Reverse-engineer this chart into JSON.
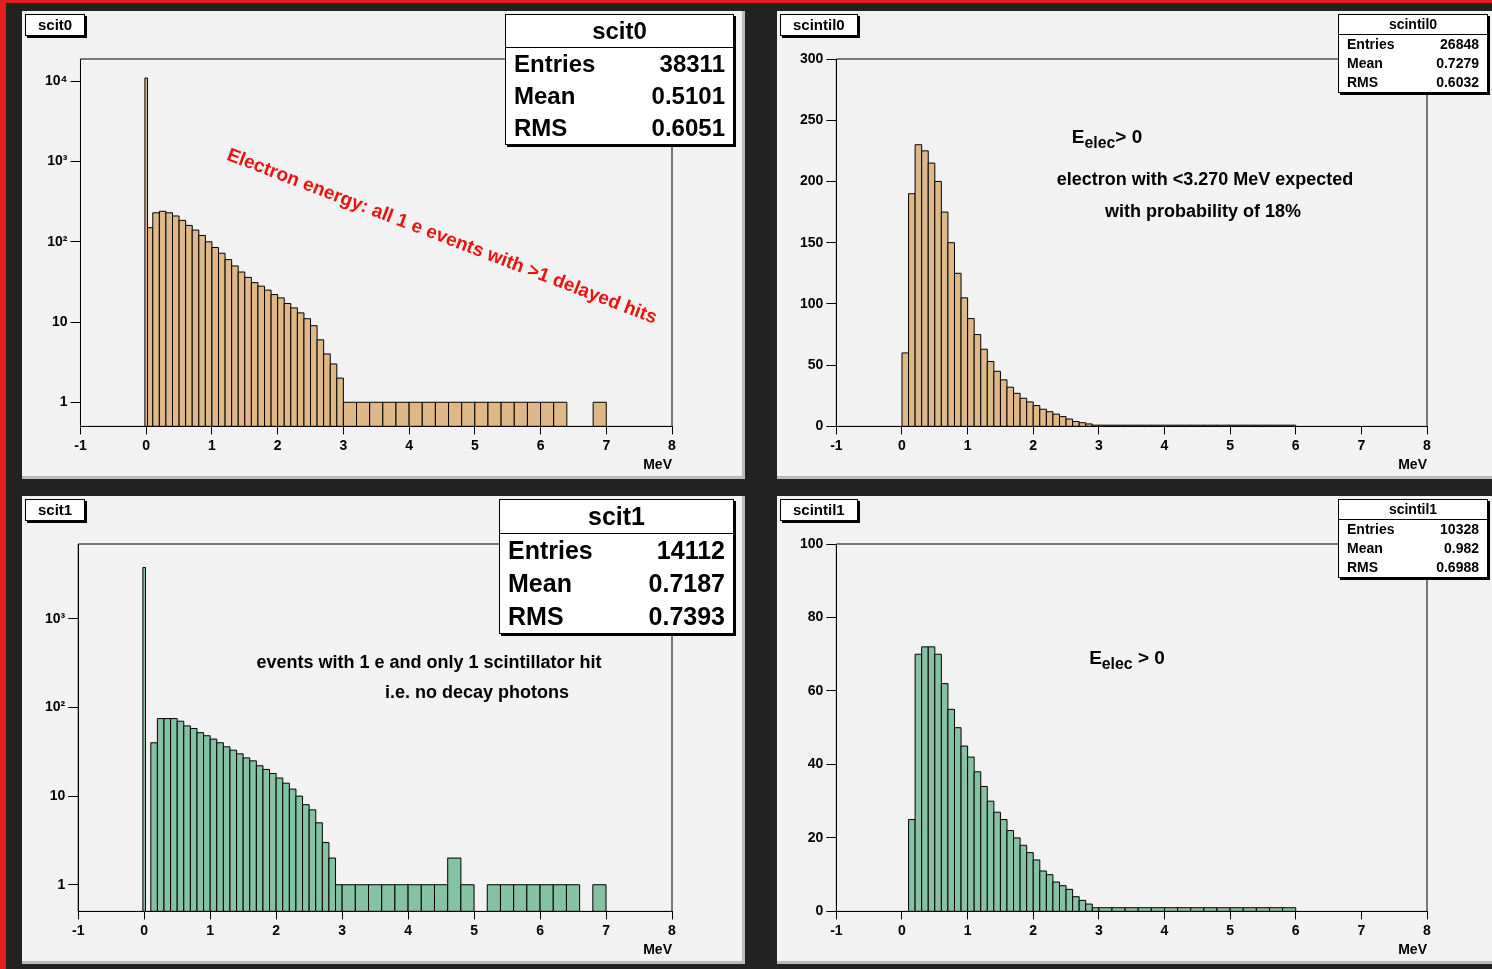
{
  "chart_data": [
    {
      "type": "histogram",
      "title": "scit0",
      "xlabel": "MeV",
      "color": "#deb887",
      "log": true,
      "bins": [
        -0.02,
        0.02,
        0.1,
        0.2,
        0.3,
        0.4,
        0.5,
        0.6,
        0.7,
        0.8,
        0.9,
        1.0,
        1.1,
        1.2,
        1.3,
        1.4,
        1.5,
        1.6,
        1.7,
        1.8,
        1.9,
        2.0,
        2.1,
        2.2,
        2.3,
        2.4,
        2.5,
        2.6,
        2.7,
        2.8,
        2.9,
        3.0,
        3.2,
        3.4,
        3.6,
        3.8,
        4.0,
        4.2,
        4.4,
        4.6,
        4.8,
        5.0,
        5.2,
        5.4,
        5.6,
        5.8,
        6.0,
        6.2,
        6.4,
        6.8,
        7.0
      ],
      "values": [
        11000,
        150,
        230,
        240,
        230,
        210,
        185,
        160,
        140,
        120,
        100,
        85,
        72,
        60,
        50,
        42,
        36,
        31,
        28,
        25,
        22,
        20,
        17,
        15,
        13,
        11,
        9,
        6,
        4,
        3,
        2,
        1,
        1,
        1,
        1,
        1,
        1,
        1,
        1,
        1,
        1,
        1,
        1,
        1,
        1,
        1,
        1,
        1,
        null,
        1
      ],
      "xlim": [
        -1,
        8
      ],
      "xticks": [
        -1,
        0,
        1,
        2,
        3,
        4,
        5,
        6,
        7,
        8
      ],
      "ylim": [
        0.5,
        19000
      ],
      "yticks": [
        1,
        10,
        {
          "value": 100,
          "label": "10²"
        },
        {
          "value": 1000,
          "label": "10³"
        },
        {
          "value": 10000,
          "label": "10⁴"
        }
      ],
      "annotations": [
        "Entries",
        "38311",
        "Mean",
        "0.5101",
        "RMS",
        "0.6051",
        "Electron energy: all 1 e events with >1 delayed hits"
      ]
    },
    {
      "type": "histogram",
      "title": "scintil0",
      "xlabel": "MeV",
      "color": "#deb887",
      "bins": [
        0,
        0.1,
        0.2,
        0.3,
        0.4,
        0.5,
        0.6,
        0.7,
        0.8,
        0.9,
        1.0,
        1.1,
        1.2,
        1.3,
        1.4,
        1.5,
        1.6,
        1.7,
        1.8,
        1.9,
        2.0,
        2.1,
        2.2,
        2.3,
        2.4,
        2.5,
        2.6,
        2.7,
        2.8,
        2.9,
        3.0,
        3.2,
        3.4,
        3.6,
        3.8,
        4.0,
        4.2,
        4.4,
        4.6,
        4.8,
        5.0,
        5.2,
        5.4,
        5.6,
        5.8,
        6.0
      ],
      "values": [
        60,
        190,
        230,
        225,
        215,
        200,
        175,
        150,
        125,
        105,
        88,
        75,
        63,
        53,
        45,
        38,
        32,
        27,
        23,
        20,
        17,
        14,
        12,
        10,
        8,
        6,
        4,
        3,
        2,
        1,
        1,
        1,
        1,
        1,
        1,
        1,
        1,
        1,
        1,
        1,
        1,
        1,
        1,
        1,
        1
      ],
      "xlim": [
        -1,
        8
      ],
      "xticks": [
        -1,
        0,
        1,
        2,
        3,
        4,
        5,
        6,
        7,
        8
      ],
      "ylim": [
        0,
        300
      ],
      "yticks": [
        0,
        50,
        100,
        150,
        200,
        250,
        300
      ],
      "annotations": [
        "Entries",
        "26848",
        "Mean",
        "0.7279",
        "RMS",
        "0.6032",
        "E$_{elec}$> 0",
        "electron with <3.270 MeV expected",
        "with probability of 18%"
      ]
    },
    {
      "type": "histogram",
      "title": "scit1",
      "xlabel": "MeV",
      "color": "#85c1a3",
      "log": true,
      "bins": [
        -0.02,
        0.02,
        0.1,
        0.2,
        0.3,
        0.4,
        0.5,
        0.6,
        0.7,
        0.8,
        0.9,
        1.0,
        1.1,
        1.2,
        1.3,
        1.4,
        1.5,
        1.6,
        1.7,
        1.8,
        1.9,
        2.0,
        2.1,
        2.2,
        2.3,
        2.4,
        2.5,
        2.6,
        2.7,
        2.8,
        2.9,
        3.0,
        3.2,
        3.4,
        3.6,
        3.8,
        4.0,
        4.2,
        4.4,
        4.6,
        4.8,
        5.0,
        5.2,
        5.4,
        5.6,
        5.8,
        6.0,
        6.2,
        6.4,
        6.6,
        6.8,
        7.0
      ],
      "values": [
        3800,
        null,
        40,
        75,
        75,
        75,
        70,
        62,
        58,
        52,
        48,
        44,
        40,
        36,
        33,
        30,
        27,
        25,
        22,
        20,
        18,
        16,
        14,
        12,
        10,
        8,
        7,
        5,
        3,
        2,
        1,
        1,
        1,
        1,
        1,
        1,
        1,
        1,
        1,
        2,
        1,
        null,
        1,
        1,
        1,
        1,
        1,
        1,
        1,
        null,
        1
      ],
      "xlim": [
        -1,
        8
      ],
      "xticks": [
        -1,
        0,
        1,
        2,
        3,
        4,
        5,
        6,
        7,
        8
      ],
      "ylim": [
        0.5,
        7000
      ],
      "yticks": [
        1,
        10,
        {
          "value": 100,
          "label": "10²"
        },
        {
          "value": 1000,
          "label": "10³"
        }
      ],
      "annotations": [
        "Entries",
        "14112",
        "Mean",
        "0.7187",
        "RMS",
        "0.7393",
        "events with 1 e and only 1 scintillator hit",
        "i.e. no decay photons"
      ]
    },
    {
      "type": "histogram",
      "title": "scintil1",
      "xlabel": "MeV",
      "color": "#85c1a3",
      "bins": [
        0.1,
        0.2,
        0.3,
        0.4,
        0.5,
        0.6,
        0.7,
        0.8,
        0.9,
        1.0,
        1.1,
        1.2,
        1.3,
        1.4,
        1.5,
        1.6,
        1.7,
        1.8,
        1.9,
        2.0,
        2.1,
        2.2,
        2.3,
        2.4,
        2.5,
        2.6,
        2.7,
        2.8,
        2.9,
        3.0,
        3.2,
        3.4,
        3.6,
        3.8,
        4.0,
        4.2,
        4.4,
        4.6,
        4.8,
        5.0,
        5.2,
        5.4,
        5.6,
        5.8,
        6.0
      ],
      "values": [
        25,
        70,
        72,
        72,
        70,
        62,
        55,
        50,
        45,
        42,
        38,
        34,
        30,
        27,
        25,
        22,
        20,
        18,
        16,
        14,
        11,
        10,
        8,
        7,
        6,
        4,
        3,
        2,
        1,
        1,
        1,
        1,
        1,
        1,
        1,
        1,
        1,
        1,
        1,
        1,
        1,
        1,
        1,
        1
      ],
      "xlim": [
        -1,
        8
      ],
      "xticks": [
        -1,
        0,
        1,
        2,
        3,
        4,
        5,
        6,
        7,
        8
      ],
      "ylim": [
        0,
        100
      ],
      "yticks": [
        0,
        20,
        40,
        60,
        80,
        100
      ],
      "annotations": [
        "Entries",
        "10328",
        "Mean",
        "0.982",
        "RMS",
        "0.6988",
        "E$_{elec}$ > 0"
      ]
    }
  ]
}
